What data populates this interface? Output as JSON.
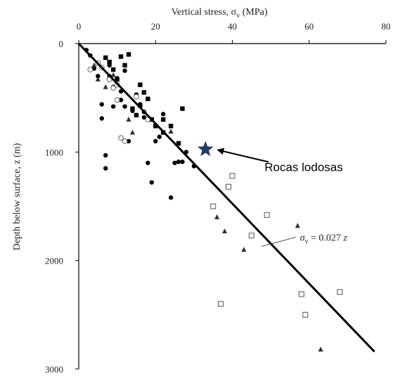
{
  "chart_data": {
    "type": "scatter",
    "title": "",
    "xlabel": "Vertical stress, σ",
    "xlabel_sub": "v",
    "xlabel_unit": " (MPa)",
    "ylabel": "Depth below surface, z (m)",
    "xlim": [
      0,
      80
    ],
    "ylim": [
      0,
      3000
    ],
    "x_axis_position": "top",
    "y_axis_inverted": true,
    "grid": false,
    "x_ticks": [
      0,
      20,
      40,
      60,
      80
    ],
    "y_ticks": [
      0,
      1000,
      2000,
      3000
    ],
    "x_tick_labels": [
      "0",
      "20",
      "40",
      "60",
      "80"
    ],
    "y_tick_labels": [
      "0",
      "1000",
      "2000",
      "3000"
    ],
    "trend_line": {
      "label": "= 0.027",
      "label_symbol": "σ",
      "label_sub": "v",
      "label_var": "z",
      "points": [
        [
          0,
          0
        ],
        [
          77,
          2840
        ]
      ]
    },
    "highlight": {
      "label": "Rocas lodosas",
      "x": 33,
      "y": 975,
      "color": "#1f3b63"
    },
    "series": [
      {
        "marker": "filled-circle",
        "points": [
          [
            2,
            60
          ],
          [
            3,
            110
          ],
          [
            4,
            230
          ],
          [
            5,
            300
          ],
          [
            6,
            690
          ],
          [
            7,
            1030
          ],
          [
            7,
            1150
          ],
          [
            8,
            200
          ],
          [
            9,
            400
          ],
          [
            10,
            320
          ],
          [
            11,
            520
          ],
          [
            12,
            580
          ],
          [
            13,
            900
          ],
          [
            14,
            620
          ],
          [
            16,
            560
          ],
          [
            17,
            680
          ],
          [
            18,
            1100
          ],
          [
            19,
            1280
          ],
          [
            21,
            860
          ],
          [
            22,
            650
          ],
          [
            24,
            1420
          ],
          [
            25,
            1100
          ],
          [
            26,
            1090
          ],
          [
            28,
            1000
          ],
          [
            27,
            1090
          ],
          [
            30,
            1130
          ],
          [
            6,
            560
          ],
          [
            8,
            300
          ],
          [
            12,
            250
          ],
          [
            15,
            470
          ],
          [
            9,
            580
          ],
          [
            11,
            440
          ],
          [
            17,
            630
          ],
          [
            20,
            900
          ]
        ]
      },
      {
        "marker": "filled-square",
        "points": [
          [
            7,
            130
          ],
          [
            8,
            170
          ],
          [
            9,
            240
          ],
          [
            10,
            330
          ],
          [
            11,
            120
          ],
          [
            13,
            100
          ],
          [
            14,
            600
          ],
          [
            15,
            660
          ],
          [
            16,
            380
          ],
          [
            17,
            450
          ],
          [
            18,
            510
          ],
          [
            20,
            760
          ],
          [
            22,
            700
          ],
          [
            24,
            760
          ],
          [
            27,
            600
          ],
          [
            12,
            200
          ],
          [
            16,
            570
          ],
          [
            19,
            700
          ],
          [
            22,
            820
          ],
          [
            26,
            920
          ]
        ]
      },
      {
        "marker": "filled-triangle",
        "points": [
          [
            4,
            200
          ],
          [
            5,
            330
          ],
          [
            7,
            400
          ],
          [
            9,
            290
          ],
          [
            13,
            700
          ],
          [
            14,
            820
          ],
          [
            24,
            810
          ],
          [
            36,
            1600
          ],
          [
            38,
            1730
          ],
          [
            43,
            1900
          ],
          [
            57,
            1680
          ],
          [
            63,
            2820
          ]
        ]
      },
      {
        "marker": "open-circle",
        "points": [
          [
            3,
            240
          ],
          [
            5,
            180
          ],
          [
            6,
            220
          ],
          [
            8,
            330
          ],
          [
            9,
            410
          ],
          [
            10,
            520
          ],
          [
            11,
            870
          ],
          [
            12,
            900
          ],
          [
            15,
            490
          ],
          [
            18,
            700
          ],
          [
            10,
            380
          ]
        ]
      },
      {
        "marker": "open-square",
        "points": [
          [
            35,
            1500
          ],
          [
            39,
            1320
          ],
          [
            40,
            1220
          ],
          [
            45,
            1770
          ],
          [
            49,
            1580
          ],
          [
            37,
            2400
          ],
          [
            58,
            2310
          ],
          [
            59,
            2500
          ],
          [
            68,
            2290
          ]
        ]
      }
    ]
  }
}
